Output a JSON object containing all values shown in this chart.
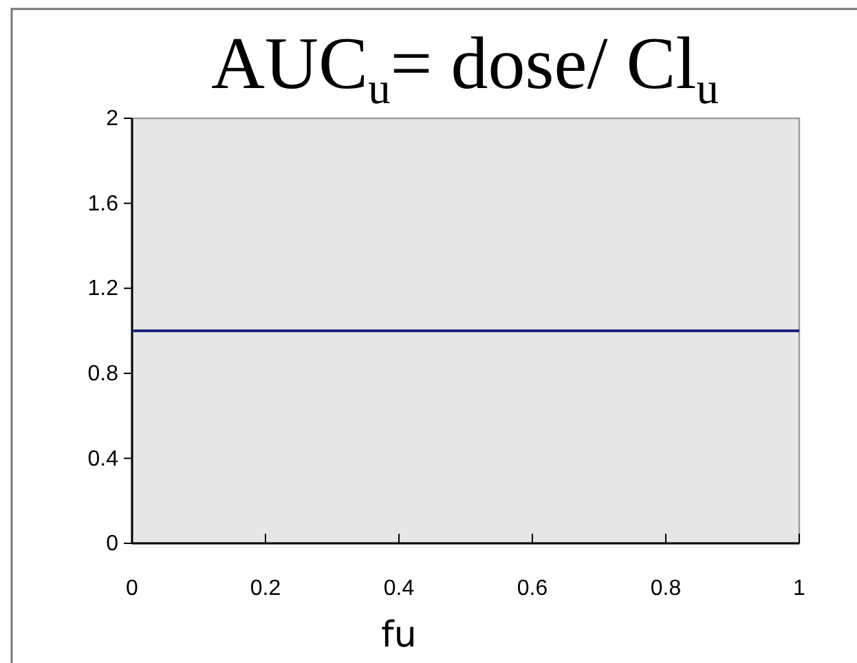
{
  "chart_data": {
    "type": "line",
    "title": "AUC$_{u}$= dose/ Cl$_{u}$",
    "xlabel": "fu",
    "x": [
      0,
      1
    ],
    "series": [
      {
        "color": "#1a237e",
        "values": [
          1,
          1
        ]
      }
    ],
    "xlim": [
      0,
      1
    ],
    "xticks": [
      0,
      0.2,
      0.4,
      0.6,
      0.8,
      1
    ],
    "ylim": [
      0,
      2
    ],
    "yticks": [
      0,
      0.4,
      0.8,
      1.2,
      1.6,
      2
    ],
    "grid": false,
    "marker": "none",
    "line_style": "solid"
  }
}
